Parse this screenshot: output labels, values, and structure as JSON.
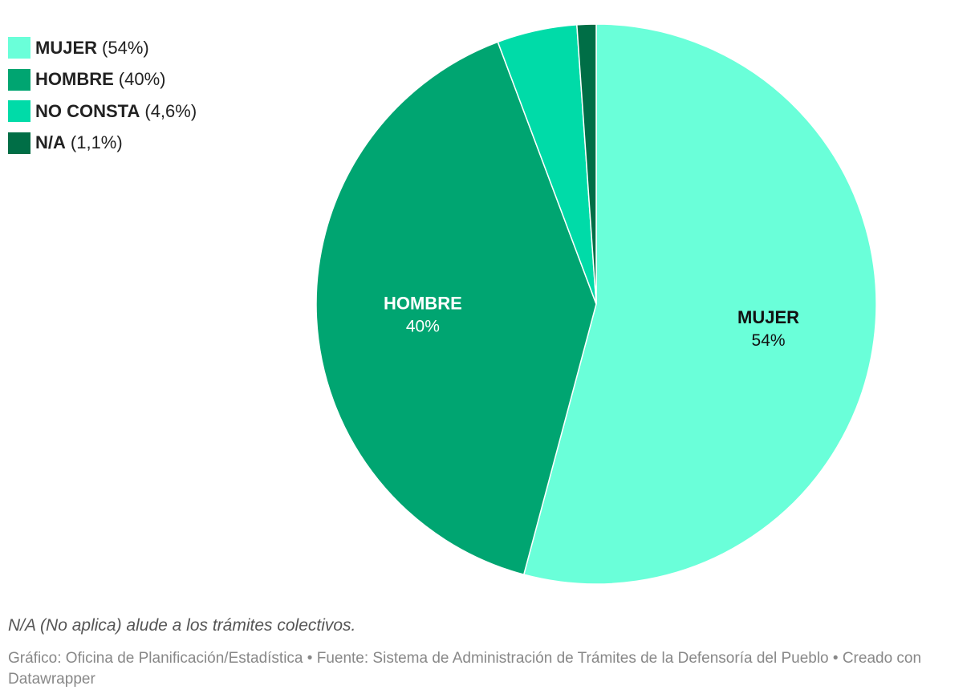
{
  "chart_data": {
    "type": "pie",
    "slices": [
      {
        "label": "MUJER",
        "value": 54,
        "pct_text": "(54%)",
        "data_label": "54%",
        "color": "#6affd9",
        "text_color": "#111111",
        "show_label": true
      },
      {
        "label": "HOMBRE",
        "value": 40,
        "pct_text": "(40%)",
        "data_label": "40%",
        "color": "#00a571",
        "text_color": "#ffffff",
        "show_label": true
      },
      {
        "label": "NO CONSTA",
        "value": 4.6,
        "pct_text": "(4,6%)",
        "data_label": "",
        "color": "#00dba8",
        "text_color": "#111111",
        "show_label": false
      },
      {
        "label": "N/A",
        "value": 1.1,
        "pct_text": "(1,1%)",
        "data_label": "",
        "color": "#006e46",
        "text_color": "#ffffff",
        "show_label": false
      }
    ],
    "legend_position": "top-left"
  },
  "notes": {
    "note": "N/A (No aplica) alude a los trámites colectivos.",
    "credits": "Gráfico: Oficina de Planificación/Estadística • Fuente: Sistema de Administración de Trámites de la Defensoría del Pueblo • Creado con Datawrapper"
  }
}
